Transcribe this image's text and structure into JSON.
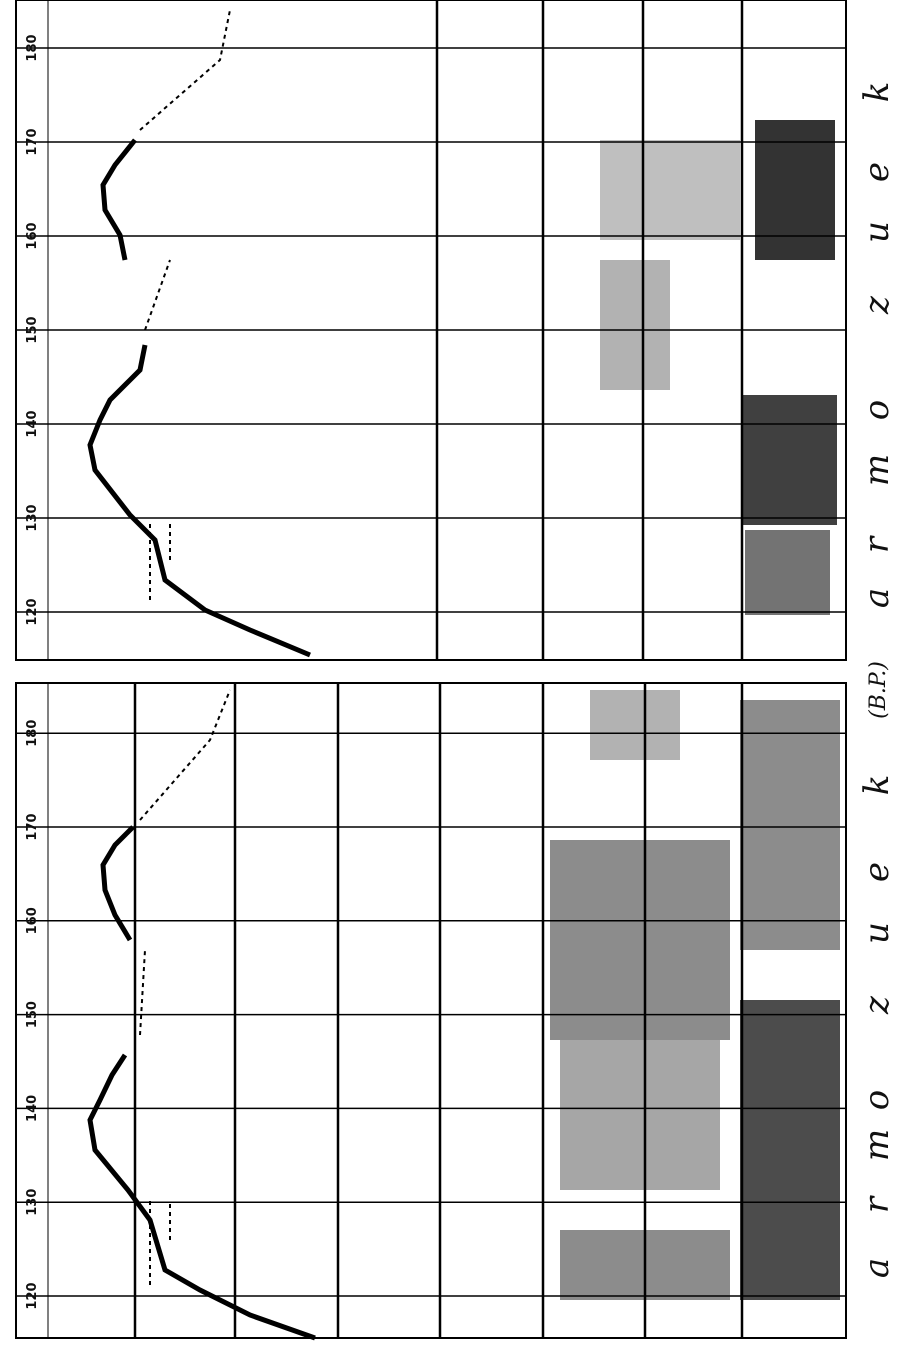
{
  "panels": [
    {
      "ticks": [
        120,
        130,
        140,
        150,
        160,
        170,
        180
      ],
      "segments": [
        "a",
        "r",
        "m",
        "o",
        "z",
        "u",
        "e",
        "k"
      ]
    },
    {
      "ticks": [
        120,
        130,
        140,
        150,
        160,
        170,
        180
      ],
      "segments": [
        "a",
        "r",
        "m",
        "o",
        "z",
        "u",
        "e",
        "k"
      ],
      "unit": "(B.P.)"
    }
  ]
}
